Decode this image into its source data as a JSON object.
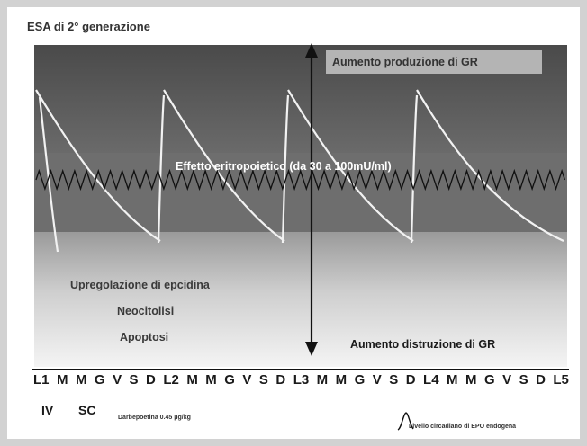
{
  "title": "ESA di 2° generazione",
  "labels": {
    "production": "Aumento produzione di GR",
    "effect": "Effetto eritropoietico (da 30 a 100mU/ml)",
    "upregulation": "Upregolazione di epcidina",
    "neocytolysis": "Neocitolisi",
    "apoptosis": "Apoptosi",
    "destruction": "Aumento distruzione di GR"
  },
  "days": [
    "L1",
    "M",
    "M",
    "G",
    "V",
    "S",
    "D",
    "L2",
    "M",
    "M",
    "G",
    "V",
    "S",
    "D",
    "L3",
    "M",
    "M",
    "G",
    "V",
    "S",
    "D",
    "L4",
    "M",
    "M",
    "G",
    "V",
    "S",
    "D",
    "L5"
  ],
  "routes": {
    "iv": "IV",
    "sc": "SC"
  },
  "drug": "Darbepoetina 0.45 μg/kg",
  "legend": {
    "circadian": "Livello circadiano di EPO endogena"
  },
  "colors": {
    "dark_band": "#5c5c5c",
    "mid_band": "#8f8f8f",
    "effect_band": "#6e6e6e",
    "curve": "#f4f4f4",
    "arrow": "#111111"
  }
}
